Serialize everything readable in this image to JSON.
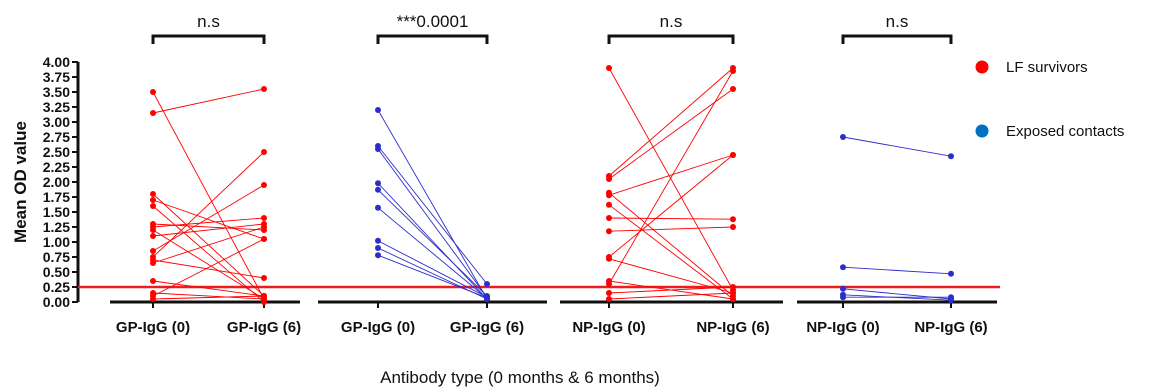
{
  "chart_data": {
    "type": "line",
    "subtype": "paired-dot",
    "title": "",
    "ylabel": "Mean OD value",
    "xlabel": "Antibody type (0 months & 6 months)",
    "ylim": [
      0,
      4
    ],
    "ytick_labels": [
      "0.00",
      "0.25",
      "0.50",
      "0.75",
      "1.00",
      "1.25",
      "1.50",
      "1.75",
      "2.00",
      "2.25",
      "2.50",
      "2.75",
      "3.00",
      "3.25",
      "3.50",
      "3.75",
      "4.00"
    ],
    "categories": [
      "GP-IgG (0)",
      "GP-IgG (6)",
      "GP-IgG (0)",
      "GP-IgG (6)",
      "NP-IgG (0)",
      "NP-IgG (6)",
      "NP-IgG (0)",
      "NP-IgG (6)"
    ],
    "cutoff": {
      "value": 0.25,
      "color": "#ee1c1c"
    },
    "legend": [
      {
        "name": "LF survivors",
        "color": "#ff0000"
      },
      {
        "name": "Exposed contacts",
        "color": "#0070c0"
      }
    ],
    "legend_position": "right",
    "groups": [
      {
        "series": "LF survivors",
        "color": "#ff0000",
        "pair": [
          0,
          1
        ],
        "significance": "n.s",
        "before": [
          3.5,
          3.15,
          1.8,
          1.7,
          1.6,
          1.3,
          1.25,
          1.2,
          1.1,
          0.85,
          0.75,
          0.7,
          0.65,
          0.35,
          0.15,
          0.1,
          0.05
        ],
        "after": [
          0.05,
          3.55,
          0.1,
          1.05,
          0.0,
          1.2,
          1.4,
          0.05,
          1.3,
          1.95,
          2.5,
          0.4,
          1.25,
          0.1,
          0.05,
          1.05,
          0.1
        ]
      },
      {
        "series": "Exposed contacts",
        "color": "#2d2dcc",
        "pair": [
          2,
          3
        ],
        "significance": "***0.0001",
        "before": [
          3.2,
          2.6,
          2.55,
          1.98,
          1.87,
          1.57,
          1.02,
          0.9,
          0.78
        ],
        "after": [
          0.05,
          0.3,
          0.08,
          0.05,
          0.1,
          0.06,
          0.08,
          0.05,
          0.07
        ]
      },
      {
        "series": "LF survivors",
        "color": "#ff0000",
        "pair": [
          4,
          5
        ],
        "significance": "n.s",
        "before": [
          3.9,
          2.1,
          2.05,
          1.82,
          1.78,
          1.62,
          1.4,
          1.18,
          0.75,
          0.72,
          0.35,
          0.3,
          0.15,
          0.05
        ],
        "after": [
          0.2,
          3.9,
          3.55,
          0.1,
          2.45,
          0.05,
          1.38,
          1.25,
          2.45,
          0.15,
          0.05,
          3.85,
          0.25,
          0.15
        ]
      },
      {
        "series": "Exposed contacts",
        "color": "#2d2dcc",
        "pair": [
          6,
          7
        ],
        "significance": "n.s",
        "before": [
          2.75,
          0.58,
          0.22,
          0.12,
          0.08
        ],
        "after": [
          2.43,
          0.47,
          0.05,
          0.03,
          0.08
        ]
      }
    ]
  }
}
